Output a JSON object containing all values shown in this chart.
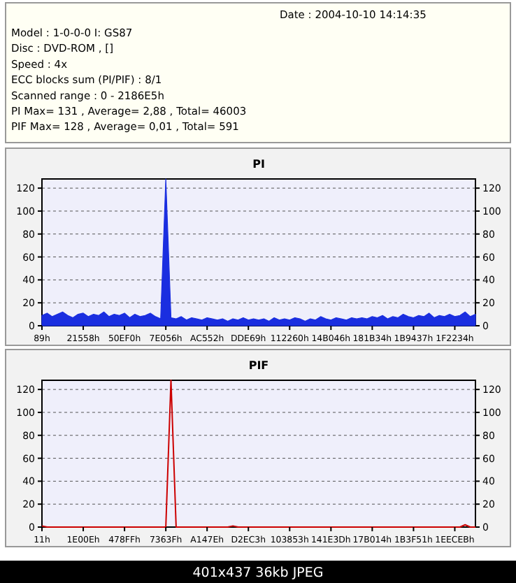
{
  "chart_data": [
    {
      "type": "other",
      "annotations": [
        "Date : 2004-10-10 14:14:35",
        "Model : 1-0-0-0 I: GS87",
        "Disc : DVD-ROM , []",
        "Speed : 4x",
        "ECC blocks sum (PI/PIF) : 8/1",
        "Scanned range : 0 - 2186E5h",
        "PI Max= 131 , Average= 2,88 , Total= 46003",
        "PIF Max= 128 , Average= 0,01 , Total= 591"
      ]
    },
    {
      "type": "area",
      "title": "PI",
      "color": "#1a2ee0",
      "grid": "y",
      "ylim": [
        0,
        128
      ],
      "yticks": [
        0,
        20,
        40,
        60,
        80,
        100,
        120
      ],
      "y2lim": [
        0,
        128
      ],
      "y2ticks": [
        0,
        20,
        40,
        60,
        80,
        100,
        120
      ],
      "categories": [
        "89h",
        null,
        null,
        null,
        null,
        null,
        null,
        null,
        "21558h",
        null,
        null,
        null,
        null,
        null,
        null,
        null,
        "50EF0h",
        null,
        null,
        null,
        null,
        null,
        null,
        null,
        "7E056h",
        null,
        null,
        null,
        null,
        null,
        null,
        null,
        "AC552h",
        null,
        null,
        null,
        null,
        null,
        null,
        null,
        "DDE69h",
        null,
        null,
        null,
        null,
        null,
        null,
        null,
        "112260h",
        null,
        null,
        null,
        null,
        null,
        null,
        null,
        "14B046h",
        null,
        null,
        null,
        null,
        null,
        null,
        null,
        "181B34h",
        null,
        null,
        null,
        null,
        null,
        null,
        null,
        "1B9437h",
        null,
        null,
        null,
        null,
        null,
        null,
        null,
        "1F2234h",
        null,
        null,
        null,
        null
      ],
      "values": [
        9,
        11,
        8,
        10,
        12,
        9,
        7,
        10,
        11,
        8,
        10,
        9,
        12,
        8,
        10,
        9,
        11,
        7,
        10,
        8,
        9,
        11,
        8,
        6,
        128,
        7,
        6,
        8,
        5,
        7,
        6,
        5,
        7,
        6,
        5,
        6,
        4,
        6,
        5,
        7,
        5,
        6,
        5,
        6,
        4,
        7,
        5,
        6,
        5,
        7,
        6,
        4,
        6,
        5,
        8,
        6,
        5,
        7,
        6,
        5,
        7,
        6,
        7,
        6,
        8,
        7,
        9,
        6,
        8,
        7,
        10,
        8,
        7,
        9,
        8,
        11,
        7,
        9,
        8,
        10,
        8,
        9,
        12,
        8,
        10
      ]
    },
    {
      "type": "line",
      "title": "PIF",
      "color": "#cc0000",
      "grid": "y",
      "ylim": [
        0,
        128
      ],
      "yticks": [
        0,
        20,
        40,
        60,
        80,
        100,
        120
      ],
      "y2lim": [
        0,
        128
      ],
      "y2ticks": [
        0,
        20,
        40,
        60,
        80,
        100,
        120
      ],
      "categories": [
        "11h",
        null,
        null,
        null,
        null,
        null,
        null,
        null,
        "1E00Eh",
        null,
        null,
        null,
        null,
        null,
        null,
        null,
        "478FFh",
        null,
        null,
        null,
        null,
        null,
        null,
        null,
        "7363Fh",
        null,
        null,
        null,
        null,
        null,
        null,
        null,
        "A147Eh",
        null,
        null,
        null,
        null,
        null,
        null,
        null,
        "D2EC3h",
        null,
        null,
        null,
        null,
        null,
        null,
        null,
        "103853h",
        null,
        null,
        null,
        null,
        null,
        null,
        null,
        "141E3Dh",
        null,
        null,
        null,
        null,
        null,
        null,
        null,
        "17B014h",
        null,
        null,
        null,
        null,
        null,
        null,
        null,
        "1B3F51h",
        null,
        null,
        null,
        null,
        null,
        null,
        null,
        "1EECEBh",
        null,
        null,
        null,
        null
      ],
      "values": [
        1,
        0,
        0,
        0,
        0,
        0,
        0,
        0,
        0,
        0,
        0,
        0,
        0,
        0,
        0,
        0,
        0,
        0,
        0,
        0,
        0,
        0,
        0,
        0,
        0,
        128,
        0,
        0,
        0,
        0,
        0,
        0,
        0,
        0,
        0,
        0,
        0,
        1,
        0,
        0,
        0,
        0,
        0,
        0,
        0,
        0,
        0,
        0,
        0,
        0,
        0,
        0,
        0,
        0,
        0,
        0,
        0,
        0,
        0,
        0,
        0,
        0,
        0,
        0,
        0,
        0,
        0,
        0,
        0,
        0,
        0,
        0,
        0,
        0,
        0,
        0,
        0,
        0,
        0,
        0,
        0,
        0,
        2,
        0,
        0
      ],
      "annotations": [
        "401x437 36kb JPEG"
      ]
    }
  ]
}
